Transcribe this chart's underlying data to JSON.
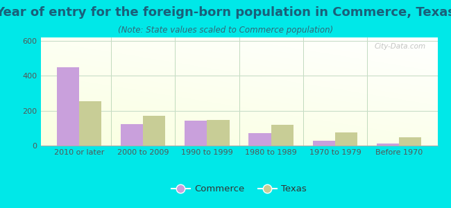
{
  "title": "Year of entry for the foreign-born population in Commerce, Texas",
  "subtitle": "(Note: State values scaled to Commerce population)",
  "categories": [
    "2010 or later",
    "2000 to 2009",
    "1990 to 1999",
    "1980 to 1989",
    "1970 to 1979",
    "Before 1970"
  ],
  "commerce_values": [
    450,
    125,
    145,
    70,
    28,
    10
  ],
  "texas_values": [
    255,
    170,
    148,
    120,
    75,
    48
  ],
  "ylim": [
    0,
    620
  ],
  "yticks": [
    0,
    200,
    400,
    600
  ],
  "commerce_color": "#c9a0dc",
  "texas_color": "#c8cd96",
  "background_outer": "#00e8e8",
  "grid_color": "#c8ddc8",
  "bar_width": 0.35,
  "legend_commerce": "Commerce",
  "legend_texas": "Texas",
  "watermark": "City-Data.com",
  "title_fontsize": 13,
  "subtitle_fontsize": 8.5,
  "tick_fontsize": 8
}
